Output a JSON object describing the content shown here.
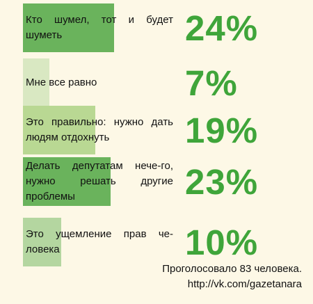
{
  "chart_data": {
    "type": "bar",
    "categories": [
      "Кто шумел, тот и будет шуметь",
      "Мне все равно",
      "Это правильно: нужно дать людям отдохнуть",
      "Делать депутатам нече-го, нужно решать другие проблемы",
      "Это ущемление прав че-ловека"
    ],
    "values": [
      24,
      7,
      19,
      23,
      10
    ],
    "value_labels": [
      "24%",
      "7%",
      "19%",
      "23%",
      "10%"
    ],
    "bar_colors": [
      "#6ab35c",
      "#d9e8c2",
      "#b9d893",
      "#6ab35c",
      "#b4d6a0"
    ],
    "value_color": "#3fa53a",
    "background": "#fdf8e6",
    "unit": "%"
  },
  "footer": {
    "votes": "Проголосовало 83 человека.",
    "link": "http://vk.com/gazetanara"
  }
}
